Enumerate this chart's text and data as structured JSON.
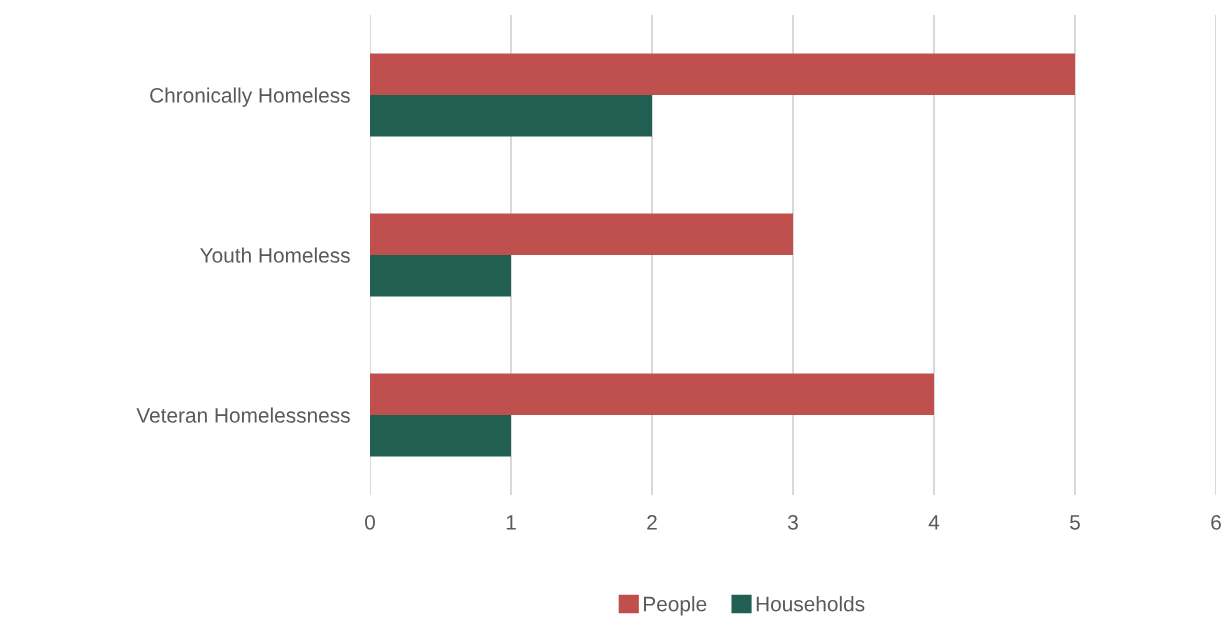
{
  "chart_data": {
    "type": "bar",
    "orientation": "horizontal",
    "categories": [
      "Chronically Homeless",
      "Youth Homeless",
      "Veteran Homelessness"
    ],
    "series": [
      {
        "name": "People",
        "color": "#c0504d",
        "values": [
          5,
          3,
          4
        ]
      },
      {
        "name": "Households",
        "color": "#215f52",
        "values": [
          2,
          1,
          1
        ]
      }
    ],
    "xlim": [
      0,
      6
    ],
    "xticks": [
      0,
      1,
      2,
      3,
      4,
      5,
      6
    ],
    "grid": "x",
    "legend": "bottom"
  }
}
